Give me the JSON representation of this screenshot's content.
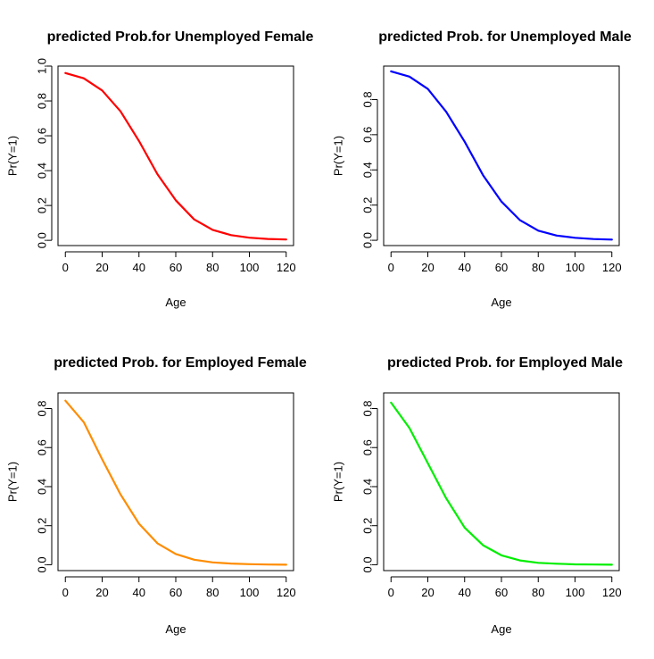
{
  "chart_data": [
    {
      "type": "line",
      "title": "predicted Prob.for Unemployed Female",
      "xlabel": "Age",
      "ylabel": "Pr(Y=1)",
      "color": "#ff0000",
      "xlim": [
        -4,
        124
      ],
      "ylim": [
        -0.03,
        1.0
      ],
      "xticks": [
        0,
        20,
        40,
        60,
        80,
        100,
        120
      ],
      "yticks": [
        0.0,
        0.2,
        0.4,
        0.6,
        0.8,
        1.0
      ],
      "ytick_labels": [
        "0.0",
        "0.2",
        "0.4",
        "0.6",
        "0.8",
        "1.0"
      ],
      "x": [
        0,
        10,
        20,
        30,
        40,
        50,
        60,
        70,
        80,
        90,
        100,
        110,
        120
      ],
      "y": [
        0.96,
        0.93,
        0.86,
        0.74,
        0.57,
        0.38,
        0.23,
        0.12,
        0.06,
        0.03,
        0.015,
        0.008,
        0.005
      ]
    },
    {
      "type": "line",
      "title": "predicted Prob. for Unemployed Male",
      "xlabel": "Age",
      "ylabel": "Pr(Y=1)",
      "color": "#0000ff",
      "xlim": [
        -4,
        124
      ],
      "ylim": [
        -0.03,
        0.99
      ],
      "xticks": [
        0,
        20,
        40,
        60,
        80,
        100,
        120
      ],
      "yticks": [
        0.0,
        0.2,
        0.4,
        0.6,
        0.8
      ],
      "ytick_labels": [
        "0.0",
        "0.2",
        "0.4",
        "0.6",
        "0.8"
      ],
      "x": [
        0,
        10,
        20,
        30,
        40,
        50,
        60,
        70,
        80,
        90,
        100,
        110,
        120
      ],
      "y": [
        0.96,
        0.93,
        0.86,
        0.73,
        0.56,
        0.37,
        0.22,
        0.115,
        0.055,
        0.027,
        0.014,
        0.007,
        0.004
      ]
    },
    {
      "type": "line",
      "title": "predicted Prob. for Employed Female",
      "xlabel": "Age",
      "ylabel": "Pr(Y=1)",
      "color": "#ff8c00",
      "xlim": [
        -4,
        124
      ],
      "ylim": [
        -0.03,
        0.88
      ],
      "xticks": [
        0,
        20,
        40,
        60,
        80,
        100,
        120
      ],
      "yticks": [
        0.0,
        0.2,
        0.4,
        0.6,
        0.8
      ],
      "ytick_labels": [
        "0.0",
        "0.2",
        "0.4",
        "0.6",
        "0.8"
      ],
      "x": [
        0,
        10,
        20,
        30,
        40,
        50,
        60,
        70,
        80,
        90,
        100,
        110,
        120
      ],
      "y": [
        0.84,
        0.73,
        0.54,
        0.36,
        0.21,
        0.11,
        0.055,
        0.026,
        0.012,
        0.006,
        0.003,
        0.001,
        0.0
      ]
    },
    {
      "type": "line",
      "title": "predicted Prob. for Employed Male",
      "xlabel": "Age",
      "ylabel": "Pr(Y=1)",
      "color": "#00ee00",
      "xlim": [
        -4,
        124
      ],
      "ylim": [
        -0.03,
        0.88
      ],
      "xticks": [
        0,
        20,
        40,
        60,
        80,
        100,
        120
      ],
      "yticks": [
        0.0,
        0.2,
        0.4,
        0.6,
        0.8
      ],
      "ytick_labels": [
        "0.0",
        "0.2",
        "0.4",
        "0.6",
        "0.8"
      ],
      "x": [
        0,
        10,
        20,
        30,
        40,
        50,
        60,
        70,
        80,
        90,
        100,
        110,
        120
      ],
      "y": [
        0.83,
        0.7,
        0.52,
        0.34,
        0.19,
        0.1,
        0.048,
        0.022,
        0.01,
        0.005,
        0.002,
        0.001,
        0.0
      ]
    }
  ]
}
